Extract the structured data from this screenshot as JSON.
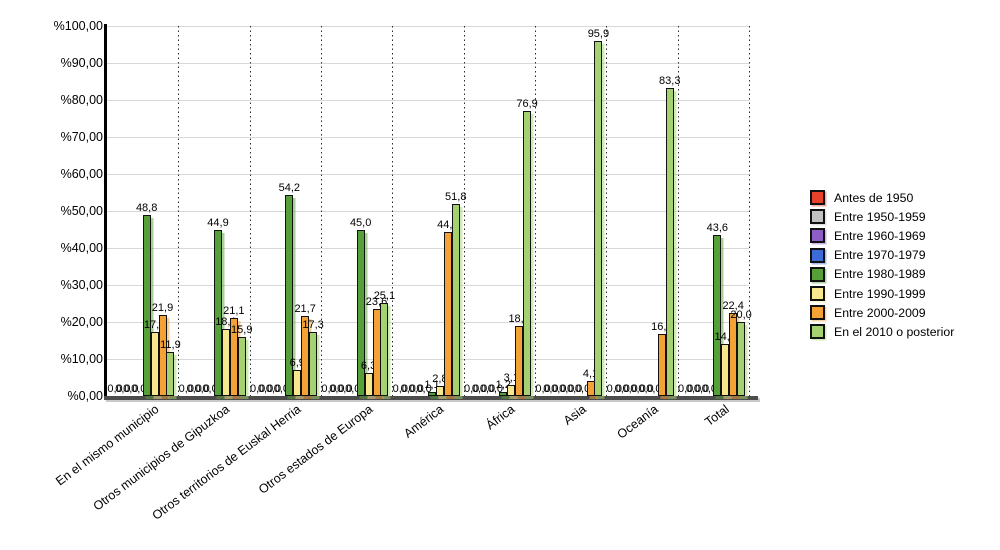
{
  "chart_data": {
    "type": "bar",
    "title": "",
    "xlabel": "",
    "ylabel": "",
    "ylim": [
      0,
      100
    ],
    "grid": true,
    "legend_position": "right",
    "y_tick_labels": [
      "%0,00",
      "%10,00",
      "%20,00",
      "%30,00",
      "%40,00",
      "%50,00",
      "%60,00",
      "%70,00",
      "%80,00",
      "%90,00",
      "%100,00"
    ],
    "categories": [
      "En el mismo municipio",
      "Otros municipios de Gipuzkoa",
      "Otros territorios de Euskal Herria",
      "Otros estados de Europa",
      "América",
      "África",
      "Asia",
      "Oceanía",
      "Total"
    ],
    "series": [
      {
        "name": "Antes de 1950",
        "color": "#e8422d",
        "values": [
          0,
          0,
          0,
          0,
          0,
          0,
          0,
          0,
          0
        ]
      },
      {
        "name": "Entre 1950-1959",
        "color": "#c2c2c2",
        "values": [
          0,
          0,
          0,
          0,
          0,
          0,
          0,
          0,
          0
        ]
      },
      {
        "name": "Entre 1960-1969",
        "color": "#8d5fc6",
        "values": [
          0,
          0,
          0,
          0,
          0,
          0,
          0,
          0,
          0
        ]
      },
      {
        "name": "Entre 1970-1979",
        "color": "#3b6cd8",
        "values": [
          0,
          0,
          0,
          0,
          0,
          0,
          0,
          0,
          0
        ]
      },
      {
        "name": "Entre 1980-1989",
        "color": "#55a038",
        "values": [
          48.8,
          44.9,
          54.2,
          45.0,
          1.1,
          1.2,
          0,
          0,
          43.6
        ]
      },
      {
        "name": "Entre 1990-1999",
        "color": "#f7e88d",
        "values": [
          17.3,
          18.1,
          6.9,
          6.3,
          2.8,
          3.1,
          0,
          0,
          14.0
        ]
      },
      {
        "name": "Entre 2000-2009",
        "color": "#f4a136",
        "values": [
          21.9,
          21.1,
          21.7,
          23.6,
          44.3,
          18.8,
          4.1,
          16.7,
          22.4
        ]
      },
      {
        "name": "En el 2010 o posterior",
        "color": "#a6d171",
        "values": [
          11.9,
          15.9,
          17.3,
          25.1,
          51.8,
          76.9,
          95.9,
          83.3,
          20.0
        ]
      }
    ],
    "value_label_format": "one-decimal-comma"
  }
}
